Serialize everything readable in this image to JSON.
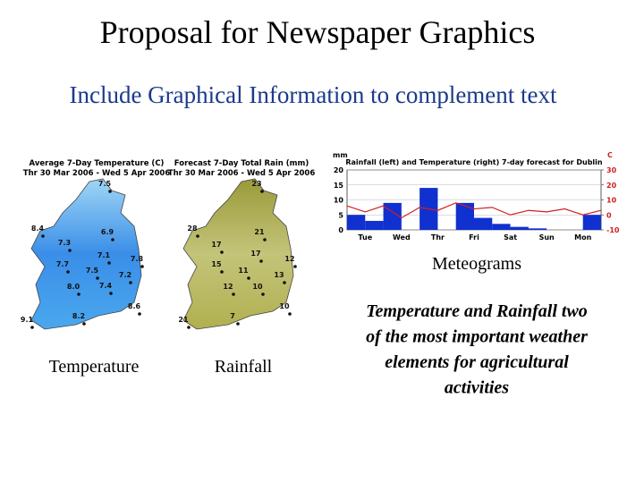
{
  "title": "Proposal for Newspaper Graphics",
  "subtitle": "Include Graphical Information to complement text",
  "maps": [
    {
      "title": "Average 7-Day Temperature (C)",
      "dates": "Thr 30 Mar 2006 - Wed 5 Apr 2006",
      "caption": "Temperature",
      "labels": [
        "7.5",
        "6.9",
        "8.4",
        "7.3",
        "7.1",
        "7.8",
        "7.7",
        "7.5",
        "7.2",
        "8.0",
        "7.4",
        "8.6",
        "9.1",
        "8.2"
      ]
    },
    {
      "title": "Forecast 7-Day Total Rain (mm)",
      "dates": "Thr 30 Mar 2006 - Wed 5 Apr 2006",
      "caption": "Rainfall",
      "labels": [
        "23",
        "28",
        "21",
        "17",
        "17",
        "12",
        "15",
        "11",
        "13",
        "12",
        "10",
        "10",
        "21",
        "7"
      ]
    }
  ],
  "meteogram": {
    "title": "Rainfall (left) and Temperature (right) 7-day forecast for Dublin",
    "ylabel": "mm",
    "y2label": "C",
    "ylim": [
      0,
      20
    ],
    "yticks": [
      0,
      5,
      10,
      15,
      20
    ],
    "y2lim": [
      -10,
      30
    ],
    "y2ticks": [
      -10,
      0,
      10,
      20,
      30
    ],
    "days": [
      "Tue",
      "Wed",
      "Thr",
      "Fri",
      "Sat",
      "Sun",
      "Mon"
    ],
    "rain": {
      "color": "#1030d0",
      "values": [
        5,
        3,
        9,
        0,
        14,
        0,
        9,
        4,
        2,
        1,
        0.5,
        0,
        0,
        5
      ]
    },
    "temperature": {
      "color": "#d02020",
      "values": [
        6,
        2,
        6,
        -2,
        5,
        3,
        8,
        4,
        5,
        0,
        3,
        2,
        4,
        0,
        3
      ]
    },
    "caption": "Meteograms"
  },
  "note": [
    "Temperature and Rainfall two",
    "of the most important weather",
    "elements for agricultural",
    "activities"
  ]
}
